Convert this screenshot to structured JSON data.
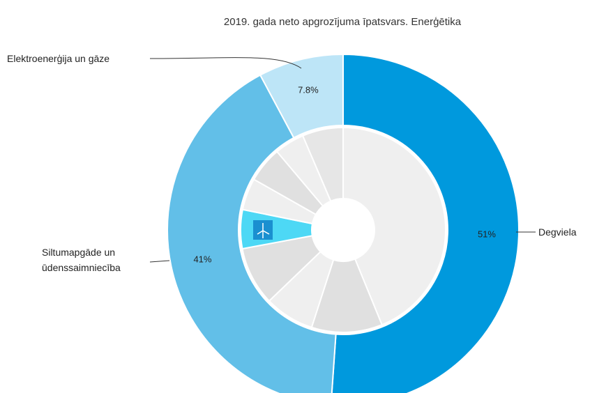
{
  "chart_data": {
    "type": "donut",
    "title": "2019. gada neto apgrozījuma īpatsvars. Enerģētika",
    "categories": [
      "Degviela",
      "Siltumapgāde un ūdenssaimniecība",
      "Elektroenerģija un gāze"
    ],
    "values": [
      51,
      41,
      7.8
    ],
    "value_labels": [
      "51%",
      "41%",
      "7.8%"
    ],
    "colors": [
      "#0099dd",
      "#62bfe8",
      "#bde5f7"
    ],
    "inner_ring": {
      "values": [
        43.6,
        11.1,
        7.8,
        9.2,
        6.1,
        5,
        5.6,
        4.7,
        6.4
      ],
      "colors": [
        "#efefef",
        "#e0e0e0",
        "#efefef",
        "#e0e0e0",
        "#4dd8f5",
        "#efefef",
        "#e0e0e0",
        "#efefef",
        "#e6e6e6"
      ]
    }
  }
}
